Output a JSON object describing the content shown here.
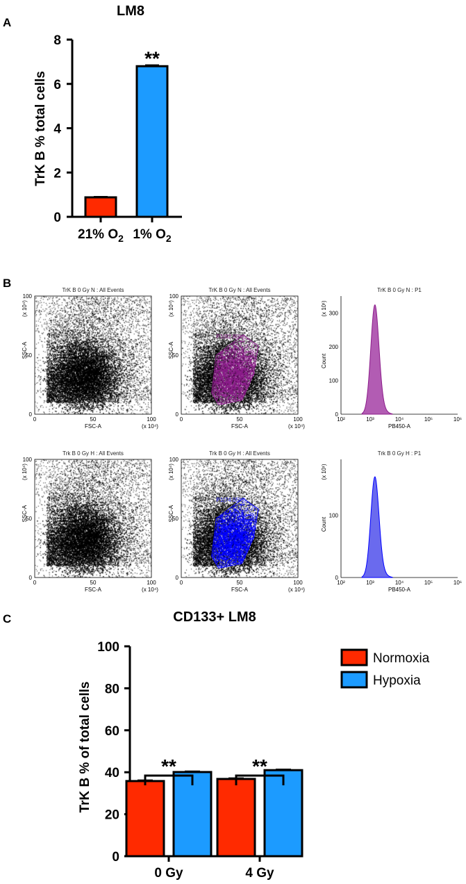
{
  "panels": {
    "a": {
      "letter": "A"
    },
    "b": {
      "letter": "B"
    },
    "c": {
      "letter": "C"
    }
  },
  "chart_data": [
    {
      "type": "bar",
      "panel": "A",
      "title": "LM8",
      "ylabel": "TrK B % total cells",
      "xlabel": "",
      "ylim": [
        0,
        8
      ],
      "yticks": [
        0,
        2,
        4,
        6,
        8
      ],
      "categories": [
        {
          "label": "21% O",
          "sub": "2"
        },
        {
          "label": "1% O",
          "sub": "2"
        }
      ],
      "values": [
        0.88,
        6.8
      ],
      "errors": [
        0.03,
        0.05
      ],
      "colors": [
        "#ff2a00",
        "#1c9bff"
      ],
      "significance": {
        "label": "**",
        "over": 1
      }
    },
    {
      "type": "flow_cytometry_panels",
      "panel": "B",
      "rows": [
        {
          "colors": {
            "gate": "#8b1c8a",
            "gate_label": "#8b1c8a",
            "hist": "#b25cb3"
          },
          "plots": [
            {
              "kind": "scatter",
              "title": "TrK B 0 Gy N : All Events",
              "xlabel": "FSC-A",
              "ylabel": "SSC-A",
              "xunit": "(x 10⁴)",
              "yunit": "(x 10⁴)",
              "xticks": [
                "0",
                "50",
                "100"
              ],
              "yticks": [
                "0",
                "50",
                "100"
              ]
            },
            {
              "kind": "scatter_gated",
              "title": "TrK B 0 Gy N : All Events",
              "xlabel": "FSC-A",
              "ylabel": "SSC-A",
              "xunit": "(x 10⁴)",
              "yunit": "(x 10⁴)",
              "xticks": [
                "0",
                "50",
                "100"
              ],
              "yticks": [
                "0",
                "50",
                "100"
              ],
              "gate_label": "P1(82.80%)",
              "gate_percent": 82.8
            },
            {
              "kind": "histogram",
              "title": "TrK B 0 Gy N : P1",
              "xlabel": "PB450-A",
              "ylabel": "Count",
              "yunit": "(x 10¹)",
              "yticks": [
                "300",
                "200",
                "100",
                "0"
              ],
              "xticks": [
                "10²",
                "10³",
                "10⁴",
                "10⁵",
                "10⁶"
              ],
              "peak_count": 320,
              "ymax": 350
            }
          ]
        },
        {
          "colors": {
            "gate": "#0000ff",
            "gate_label": "#2a2aff",
            "hist": "#6a6aee"
          },
          "plots": [
            {
              "kind": "scatter",
              "title": "Trk B 0 Gy H : All Events",
              "xlabel": "FSC-A",
              "ylabel": "SSC-A",
              "xunit": "(x 10⁴)",
              "yunit": "(x 10⁴)",
              "xticks": [
                "0",
                "50",
                "100"
              ],
              "yticks": [
                "0",
                "50",
                "100"
              ]
            },
            {
              "kind": "scatter_gated",
              "title": "Trk B 0 Gy H : All Events",
              "xlabel": "FSC-A",
              "ylabel": "SSC-A",
              "xunit": "(x 10⁴)",
              "yunit": "(x 10⁴)",
              "xticks": [
                "0",
                "50",
                "100"
              ],
              "yticks": [
                "0",
                "50",
                "100"
              ],
              "gate_label": "P1(74.05%)",
              "gate_percent": 74.05
            },
            {
              "kind": "histogram",
              "title": "Trk B 0 Gy H : P1",
              "xlabel": "PB450-A",
              "ylabel": "Count",
              "yunit": "(x 10¹)",
              "yticks": [
                "100",
                "0"
              ],
              "xticks": [
                "10²",
                "10³",
                "10⁴",
                "10⁵",
                "10⁶"
              ],
              "peak_count": 160,
              "ymax": 190
            }
          ]
        }
      ]
    },
    {
      "type": "bar",
      "panel": "C",
      "title": "CD133+ LM8",
      "ylabel": "TrK B % of total cells",
      "xlabel": "",
      "ylim": [
        0,
        100
      ],
      "yticks": [
        0,
        20,
        40,
        60,
        80,
        100
      ],
      "categories": [
        "0 Gy",
        "4 Gy"
      ],
      "series": [
        {
          "name": "Normoxia",
          "values": [
            35.8,
            36.8
          ],
          "errors": [
            0.4,
            0.4
          ],
          "color": "#ff2a00"
        },
        {
          "name": "Hypoxia",
          "values": [
            40.1,
            41.0
          ],
          "errors": [
            0.4,
            0.4
          ],
          "color": "#1c9bff"
        }
      ],
      "legend": "right",
      "significance": [
        {
          "label": "**",
          "group": 0
        },
        {
          "label": "**",
          "group": 1
        }
      ]
    }
  ]
}
